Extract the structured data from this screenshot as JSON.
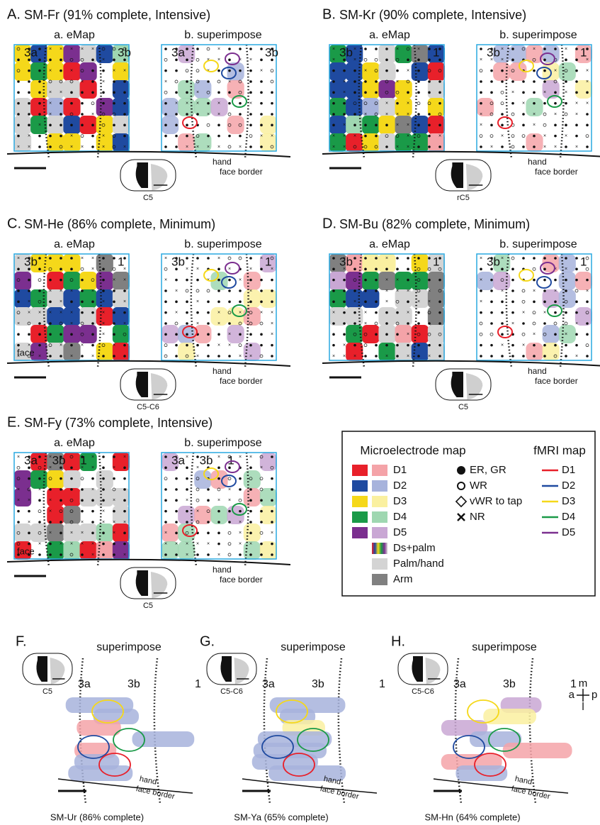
{
  "panels": [
    {
      "letter": "A.",
      "title": "SM-Fr (91% complete, Intensive)",
      "sub_a": "a. eMap",
      "sub_b": "b. superimpose",
      "areas_a": [
        "3a",
        "3b"
      ],
      "areas_b": [
        "3a",
        "3b"
      ],
      "hand": "hand",
      "face_border": "face border",
      "slice": "C5"
    },
    {
      "letter": "B.",
      "title": "SM-Kr (90% complete, Intensive)",
      "sub_a": "a. eMap",
      "sub_b": "b. superimpose",
      "areas_a": [
        "3b",
        "1"
      ],
      "areas_b": [
        "3b",
        "1"
      ],
      "hand": "hand",
      "face_border": "face border",
      "slice": "rC5"
    },
    {
      "letter": "C.",
      "title": "SM-He (86% complete, Minimum)",
      "sub_a": "a. eMap",
      "sub_b": "b. superimpose",
      "areas_a": [
        "3b",
        "1"
      ],
      "areas_b": [
        "3b",
        "1"
      ],
      "face": "face",
      "hand": "hand",
      "face_border": "face border",
      "slice": "C5-C6"
    },
    {
      "letter": "D.",
      "title": "SM-Bu (82% complete, Minimum)",
      "sub_a": "a. eMap",
      "sub_b": "b. superimpose",
      "areas_a": [
        "3b",
        "1"
      ],
      "areas_b": [
        "3b",
        "1"
      ],
      "hand": "hand",
      "face_border": "face border",
      "slice": "C5"
    },
    {
      "letter": "E.",
      "title": "SM-Fy (73% complete, Intensive)",
      "sub_a": "a. eMap",
      "sub_b": "b. superimpose",
      "areas_a": [
        "3a",
        "3b",
        "1"
      ],
      "areas_b": [
        "3a",
        "3b",
        "1"
      ],
      "face": "face",
      "hand": "hand",
      "face_border": "face border",
      "slice": "C5"
    }
  ],
  "legend": {
    "micro_title": "Microelectrode map",
    "fmri_title": "fMRI map",
    "digits": [
      "D1",
      "D2",
      "D3",
      "D4",
      "D5"
    ],
    "symbols": [
      "ER, GR",
      "WR",
      "vWR to tap",
      "NR"
    ],
    "others": [
      "Ds+palm",
      "Palm/hand",
      "Arm"
    ],
    "fmri": [
      "D1",
      "D2",
      "D3",
      "D4",
      "D5"
    ]
  },
  "lower_panels": [
    {
      "letter": "F.",
      "label": "superimpose",
      "slice": "C5",
      "areas": [
        "3a",
        "3b",
        "1"
      ],
      "hand": "hand",
      "face_border": "face border",
      "caption": "SM-Ur (86% complete)"
    },
    {
      "letter": "G.",
      "label": "superimpose",
      "slice": "C5-C6",
      "areas": [
        "3a",
        "3b",
        "1"
      ],
      "hand": "hand",
      "face_border": "face border",
      "caption": "SM-Ya (65% complete)"
    },
    {
      "letter": "H.",
      "label": "superimpose",
      "slice": "C5-C6",
      "areas": [
        "3a",
        "3b",
        "1"
      ],
      "hand": "hand",
      "face_border": "face border",
      "caption": "SM-Hn (64% complete)"
    }
  ],
  "compass": {
    "m": "m",
    "a": "a",
    "p": "p",
    "l": "l"
  }
}
